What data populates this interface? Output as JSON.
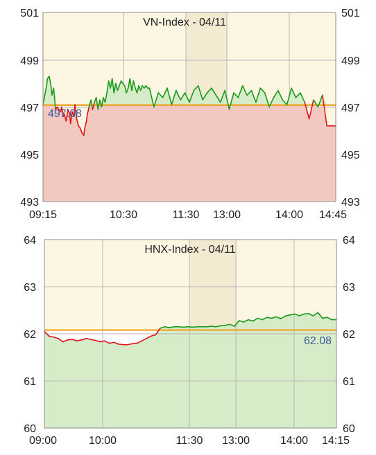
{
  "chart_data": [
    {
      "type": "line",
      "title": "VN-Index - 04/11",
      "reference_value": 497.08,
      "reference_label": "497.08",
      "ylim": [
        493,
        501
      ],
      "y_ticks": [
        "501",
        "499",
        "497",
        "495",
        "493"
      ],
      "x_ticks": [
        "09:15",
        "10:30",
        "11:30",
        "13:00",
        "14:00",
        "14:45"
      ],
      "break_between": [
        "11:30",
        "13:00"
      ],
      "grid": true,
      "colors": {
        "background": "#fdf6e3",
        "break_band": "#f4ead2",
        "grid": "#b5b5b5",
        "reference": "#f0a01e",
        "up_line": "#1a9a1a",
        "down_line": "#e01515",
        "up_fill": "#d6ecc8",
        "down_fill": "#f2c8c0",
        "label": "#3d5b9e"
      },
      "series": [
        {
          "x": [
            0,
            2,
            4,
            5,
            7,
            9,
            10,
            12,
            13,
            14,
            16,
            18,
            20,
            21,
            23,
            24,
            26,
            28,
            30,
            31,
            33,
            35,
            36,
            38,
            40,
            42,
            44,
            46,
            47,
            49,
            50,
            52,
            54,
            56,
            58,
            60,
            62,
            64,
            66,
            68,
            70,
            72,
            74,
            76,
            78,
            80,
            82,
            84,
            86,
            88,
            90,
            92,
            94,
            96,
            98,
            100,
            102,
            104,
            106,
            108,
            110,
            112,
            114,
            116,
            118,
            120,
            125,
            130,
            135,
            140,
            145,
            150,
            155,
            160,
            165,
            170,
            175,
            180,
            185,
            190,
            195,
            200,
            205,
            210,
            215,
            220,
            225,
            230,
            235,
            240,
            245,
            250,
            255,
            260,
            265,
            270,
            275,
            280,
            285,
            290,
            295,
            300,
            305,
            310,
            315,
            320,
            325,
            330
          ],
          "values": [
            497.1,
            497.5,
            497.9,
            498.2,
            498.3,
            497.9,
            497.5,
            497.8,
            497.4,
            496.9,
            497.0,
            496.9,
            496.8,
            497.0,
            496.6,
            496.7,
            496.4,
            496.9,
            496.7,
            496.3,
            496.8,
            496.6,
            497.1,
            496.5,
            496.2,
            496.1,
            495.9,
            495.8,
            496.1,
            496.4,
            496.7,
            497.0,
            497.3,
            496.9,
            497.2,
            497.4,
            496.9,
            497.3,
            497.0,
            497.4,
            497.2,
            497.6,
            498.1,
            497.8,
            498.2,
            497.6,
            498.0,
            497.7,
            497.9,
            498.1,
            498.0,
            497.9,
            497.6,
            497.8,
            498.2,
            497.7,
            498.1,
            497.8,
            497.6,
            497.9,
            497.7,
            497.9,
            497.8,
            497.9,
            497.8,
            497.8,
            497.0,
            497.6,
            497.4,
            497.8,
            497.1,
            497.7,
            497.3,
            497.6,
            497.2,
            497.7,
            497.9,
            497.3,
            497.6,
            497.8,
            497.5,
            497.2,
            497.7,
            496.9,
            497.6,
            497.4,
            497.9,
            497.5,
            497.7,
            497.2,
            497.8,
            497.6,
            497.0,
            497.4,
            497.7,
            497.3,
            497.1,
            497.8,
            497.4,
            497.6,
            497.2,
            496.5,
            497.3,
            497.0,
            497.5,
            496.2,
            496.2,
            496.2
          ],
          "x_unit": "trading minutes since 09:15 (break removed)"
        }
      ]
    },
    {
      "type": "line",
      "title": "HNX-Index - 04/11",
      "reference_value": 62.08,
      "reference_label": "62.08",
      "ylim": [
        60,
        64
      ],
      "y_ticks": [
        "64",
        "63",
        "62",
        "61",
        "60"
      ],
      "x_ticks": [
        "09:00",
        "10:00",
        "11:30",
        "13:00",
        "14:00",
        "14:15"
      ],
      "break_between": [
        "11:30",
        "13:00"
      ],
      "grid": true,
      "colors": {
        "background": "#fdf6e3",
        "break_band": "#f4ead2",
        "grid": "#b5b5b5",
        "reference": "#f0a01e",
        "up_line": "#1a9a1a",
        "down_line": "#e01515",
        "up_fill": "#d6ecc8",
        "down_fill": "#ffffff",
        "label": "#3d5b9e"
      },
      "series": [
        {
          "x": [
            0,
            5,
            10,
            15,
            20,
            25,
            30,
            35,
            40,
            45,
            50,
            55,
            60,
            65,
            70,
            75,
            80,
            85,
            90,
            95,
            100,
            105,
            110,
            115,
            120,
            125,
            130,
            135,
            140,
            145,
            150,
            155,
            160,
            165,
            170,
            175,
            180,
            185,
            190,
            195,
            200,
            205,
            210,
            215,
            220,
            225,
            230,
            235,
            240,
            245,
            250,
            255,
            260,
            265,
            270,
            275,
            280,
            285,
            290,
            295,
            300,
            305,
            310,
            315
          ],
          "values": [
            62.05,
            61.95,
            61.93,
            61.9,
            61.83,
            61.87,
            61.88,
            61.85,
            61.87,
            61.9,
            61.88,
            61.86,
            61.83,
            61.85,
            61.8,
            61.82,
            61.78,
            61.77,
            61.77,
            61.79,
            61.8,
            61.85,
            61.9,
            61.95,
            61.98,
            62.12,
            62.15,
            62.13,
            62.15,
            62.15,
            62.14,
            62.15,
            62.14,
            62.15,
            62.15,
            62.15,
            62.16,
            62.15,
            62.17,
            62.18,
            62.2,
            62.16,
            62.28,
            62.25,
            62.3,
            62.27,
            62.33,
            62.3,
            62.35,
            62.33,
            62.36,
            62.32,
            62.38,
            62.4,
            62.42,
            62.38,
            62.42,
            62.43,
            62.38,
            62.45,
            62.33,
            62.35,
            62.3,
            62.3
          ],
          "x_unit": "trading minutes since 09:00 (break removed)"
        }
      ]
    }
  ]
}
